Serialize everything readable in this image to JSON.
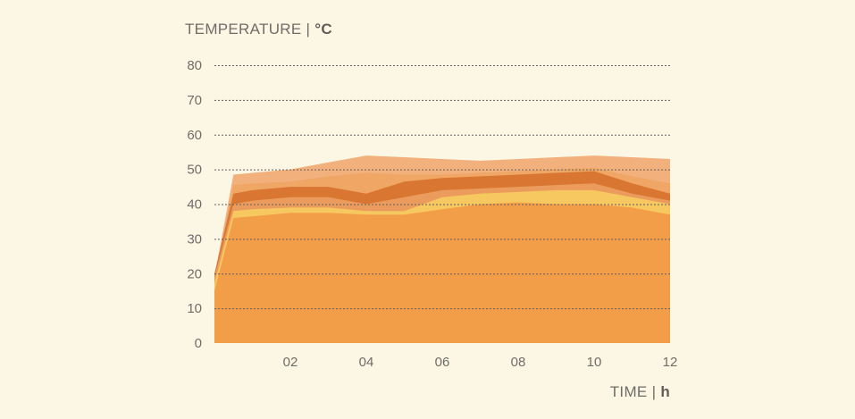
{
  "chart_data": {
    "type": "area",
    "y_title": "TEMPERATURE | ",
    "y_unit": "°C",
    "x_title": "TIME | ",
    "x_unit": "h",
    "xlim": [
      0,
      12
    ],
    "ylim": [
      0,
      80
    ],
    "y_ticks": [
      0,
      10,
      20,
      30,
      40,
      50,
      60,
      70,
      80
    ],
    "x_ticks": [
      "02",
      "04",
      "06",
      "08",
      "10",
      "12"
    ],
    "x_tick_values": [
      2,
      4,
      6,
      8,
      10,
      12
    ],
    "grid": true,
    "x": [
      0,
      0.5,
      1,
      2,
      3,
      4,
      5,
      6,
      7,
      8,
      9,
      10,
      11,
      12
    ],
    "series": [
      {
        "color": "#f2b07c",
        "values": [
          19,
          48.5,
          49,
          50,
          52,
          54,
          53.5,
          53,
          52.5,
          53,
          53.5,
          54,
          53.5,
          53
        ]
      },
      {
        "color": "#f0a765",
        "values": [
          19,
          45.5,
          46,
          46.5,
          48,
          49,
          48.5,
          48.5,
          49,
          49.5,
          50,
          50.5,
          48,
          46
        ]
      },
      {
        "color": "#d97632",
        "values": [
          20,
          43,
          44,
          45,
          45,
          43,
          46.5,
          47.5,
          48,
          48.5,
          49,
          49.5,
          46,
          43
        ]
      },
      {
        "color": "#eb9c5c",
        "values": [
          19,
          40,
          41,
          42,
          42,
          40,
          42,
          44,
          44.5,
          45,
          45.5,
          46,
          43,
          41
        ]
      },
      {
        "color": "#f8c860",
        "values": [
          17,
          38,
          38.5,
          39,
          39,
          38,
          38,
          42,
          43,
          43.5,
          44,
          44,
          42,
          40
        ]
      },
      {
        "color": "#f29d48",
        "values": [
          15,
          36,
          36.5,
          37.5,
          37.5,
          37,
          37,
          38.5,
          40,
          40.5,
          40,
          40,
          39,
          37
        ]
      }
    ]
  }
}
